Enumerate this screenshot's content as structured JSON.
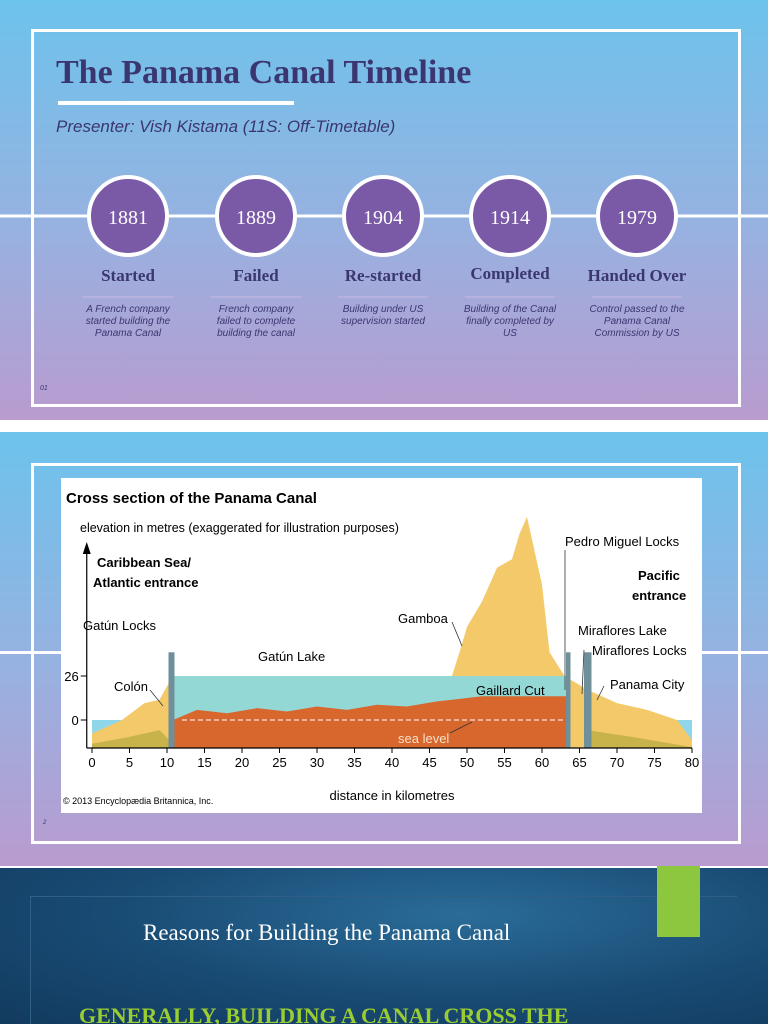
{
  "slides": [
    {
      "title": "The Panama Canal Timeline",
      "presenter": "Presenter: Vish Kistama (11S: Off-Timetable)",
      "timeline": [
        {
          "year": "1881",
          "label": "Started",
          "description": "A French company started building the Panama Canal"
        },
        {
          "year": "1889",
          "label": "Failed",
          "description": "French company failed to complete building the canal"
        },
        {
          "year": "1904",
          "label": "Re-started",
          "description": "Building under US supervision started"
        },
        {
          "year": "1914",
          "label": "Completed",
          "description": "Building of the Canal finally completed by US"
        },
        {
          "year": "1979",
          "label": "Handed Over",
          "description": "Control passed to the Panama Canal Commission by US"
        }
      ],
      "page_number": "01"
    },
    {
      "figure": {
        "title": "Cross section of the Panama Canal",
        "y_axis_label": "elevation in metres (exaggerated for illustration purposes)",
        "x_axis_label": "distance in kilometres",
        "annotations": [
          "Caribbean Sea/",
          "Atlantic entrance",
          "Pacific",
          "entrance",
          "Pedro Miguel Locks",
          "Gatún Locks",
          "Gamboa",
          "Miraflores Lake",
          "Miraflores Locks",
          "Gatún Lake",
          "Colón",
          "Panama City",
          "Gaillard Cut",
          "sea level"
        ],
        "xticks": [
          0,
          5,
          10,
          15,
          20,
          25,
          30,
          35,
          40,
          45,
          50,
          55,
          60,
          65,
          70,
          75,
          80
        ],
        "yticks": [
          26,
          0
        ],
        "credit": "© 2013 Encyclopædia Britannica, Inc."
      },
      "page_number": "2"
    },
    {
      "title": "Reasons for Building the Panama Canal",
      "heading": "GENERALLY, BUILDING A CANAL CROSS THE"
    }
  ]
}
